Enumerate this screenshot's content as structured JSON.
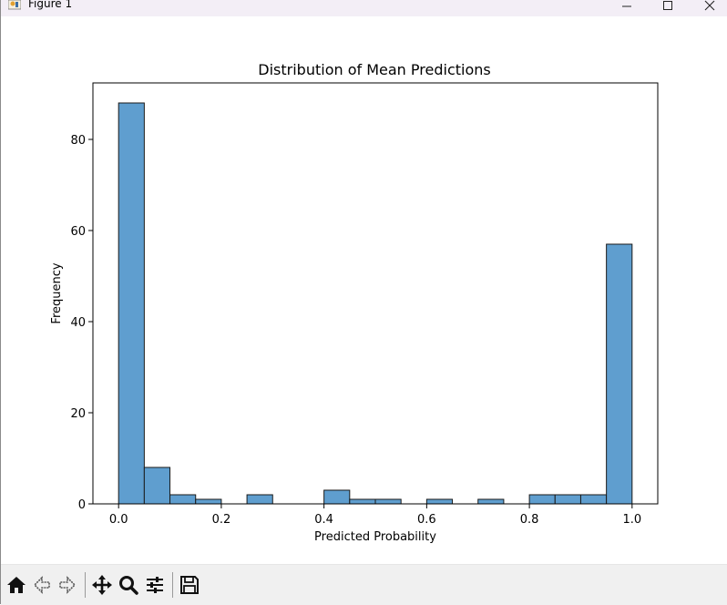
{
  "window": {
    "title": "Figure 1",
    "icons": {
      "app": "matplotlib-figure-icon",
      "minimize": "minimize-icon",
      "maximize": "maximize-icon",
      "close": "close-icon"
    }
  },
  "toolbar": {
    "tools": [
      {
        "name": "home-icon",
        "label": "Home"
      },
      {
        "name": "back-arrow-icon",
        "label": "Back"
      },
      {
        "name": "forward-arrow-icon",
        "label": "Forward"
      },
      {
        "name": "pan-move-icon",
        "label": "Pan"
      },
      {
        "name": "zoom-magnifier-icon",
        "label": "Zoom"
      },
      {
        "name": "configure-subplots-icon",
        "label": "Configure subplots"
      },
      {
        "name": "save-floppy-icon",
        "label": "Save"
      }
    ]
  },
  "chart_data": {
    "type": "bar",
    "title": "Distribution of Mean Predictions",
    "xlabel": "Predicted Probability",
    "ylabel": "Frequency",
    "bin_edges": [
      0.0,
      0.05,
      0.1,
      0.15,
      0.2,
      0.25,
      0.3,
      0.35,
      0.4,
      0.45,
      0.5,
      0.55,
      0.6,
      0.65,
      0.7,
      0.75,
      0.8,
      0.85,
      0.9,
      0.95,
      1.0
    ],
    "values": [
      88,
      8,
      2,
      1,
      0,
      2,
      0,
      0,
      3,
      1,
      1,
      0,
      1,
      0,
      1,
      0,
      2,
      2,
      2,
      57
    ],
    "xlim": [
      -0.05,
      1.05
    ],
    "ylim": [
      0,
      92.4
    ],
    "xticks": [
      0.0,
      0.2,
      0.4,
      0.6,
      0.8,
      1.0
    ],
    "xtick_labels": [
      "0.0",
      "0.2",
      "0.4",
      "0.6",
      "0.8",
      "1.0"
    ],
    "yticks": [
      0,
      20,
      40,
      60,
      80
    ],
    "ytick_labels": [
      "0",
      "20",
      "40",
      "60",
      "80"
    ],
    "grid": false,
    "bar_color": "#5f9ecf",
    "edge_color": "#1a1a1a"
  }
}
